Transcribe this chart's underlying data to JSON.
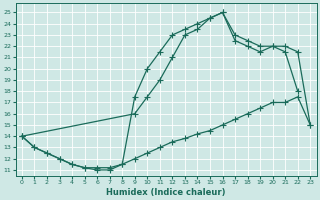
{
  "xlabel": "Humidex (Indice chaleur)",
  "background_color": "#cfe8e5",
  "line_color": "#1a6b5a",
  "grid_color": "#ffffff",
  "xlim": [
    -0.5,
    23.5
  ],
  "ylim": [
    10.5,
    25.8
  ],
  "xticks": [
    0,
    1,
    2,
    3,
    4,
    5,
    6,
    7,
    8,
    9,
    10,
    11,
    12,
    13,
    14,
    15,
    16,
    17,
    18,
    19,
    20,
    21,
    22,
    23
  ],
  "yticks": [
    11,
    12,
    13,
    14,
    15,
    16,
    17,
    18,
    19,
    20,
    21,
    22,
    23,
    24,
    25
  ],
  "curve1_x": [
    0,
    1,
    2,
    3,
    4,
    5,
    6,
    7,
    8,
    9,
    10,
    11,
    12,
    13,
    14,
    15,
    16,
    17,
    18,
    19,
    20,
    21,
    22
  ],
  "curve1_y": [
    14,
    13,
    12.5,
    12,
    11.5,
    11.2,
    11.0,
    11.0,
    11.5,
    17.5,
    20,
    21.5,
    23,
    23.5,
    24.0,
    24.5,
    25.0,
    23.0,
    22.5,
    22.0,
    22.0,
    21.5,
    18.0
  ],
  "curve2_x": [
    0,
    1,
    2,
    3,
    4,
    5,
    6,
    7,
    8,
    9,
    10,
    11,
    12,
    13,
    14,
    15,
    16,
    17,
    18,
    19,
    20,
    21,
    22,
    23
  ],
  "curve2_y": [
    14,
    13,
    12.5,
    12,
    11.5,
    11.2,
    11.2,
    11.2,
    11.5,
    12.0,
    12.5,
    13.0,
    13.5,
    13.8,
    14.2,
    14.5,
    15.0,
    15.5,
    16.0,
    16.5,
    17.0,
    17.0,
    17.5,
    15.0
  ],
  "curve3_x": [
    0,
    9,
    10,
    11,
    12,
    13,
    14,
    15,
    16,
    17,
    18,
    19,
    20,
    21,
    22,
    23
  ],
  "curve3_y": [
    14,
    16.0,
    17.5,
    19.0,
    21.0,
    23.0,
    23.5,
    24.5,
    25.0,
    22.5,
    22.0,
    21.5,
    22.0,
    22.0,
    21.5,
    15.0
  ],
  "marker": "+",
  "markersize": 4,
  "linewidth": 0.9
}
